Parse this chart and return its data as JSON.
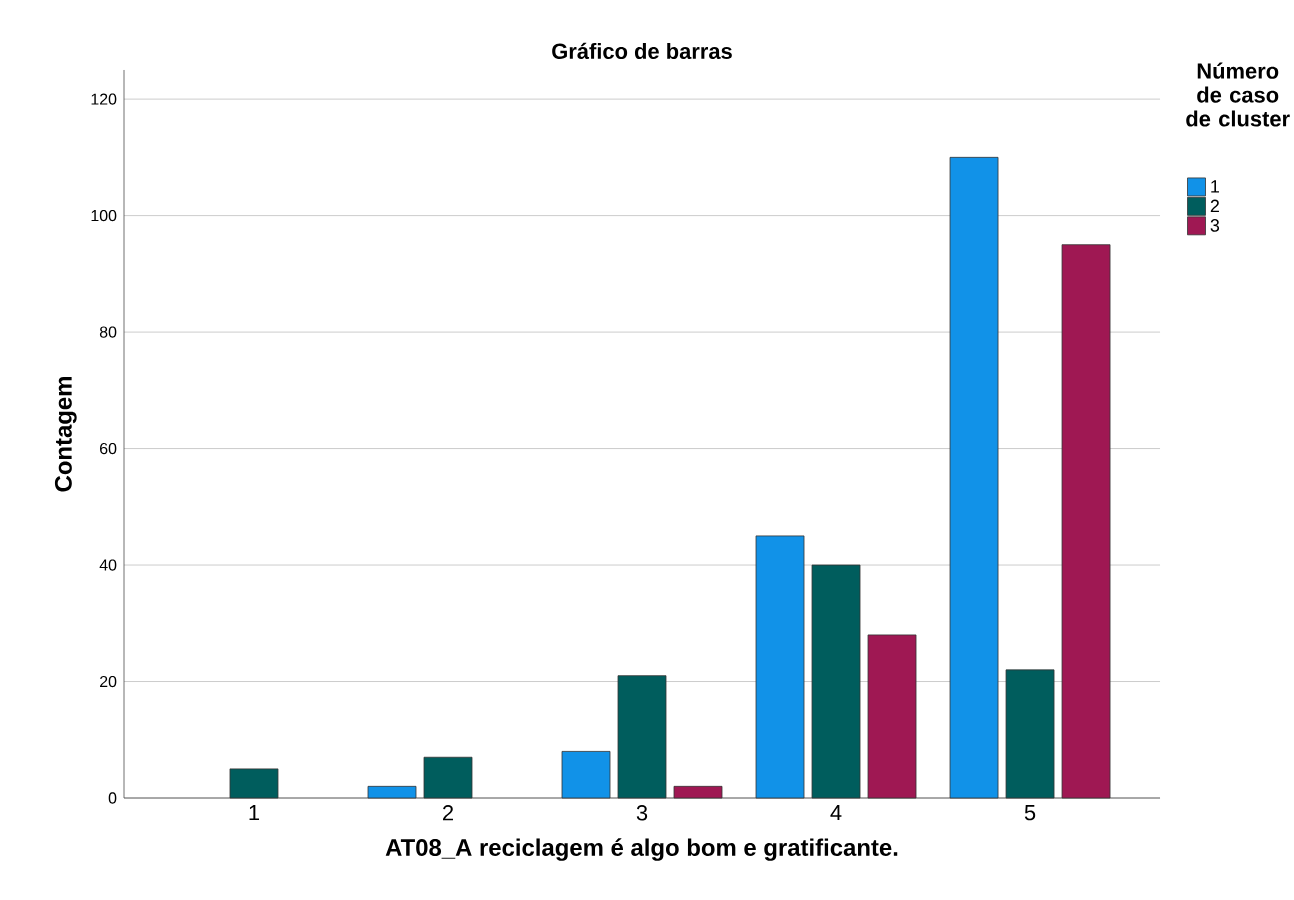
{
  "chart_data": {
    "type": "bar",
    "title": "Gráfico de barras",
    "xlabel": "AT08_A reciclagem é algo bom e gratificante.",
    "ylabel": "Contagem",
    "legend_title": "Número de caso de cluster",
    "categories": [
      "1",
      "2",
      "3",
      "4",
      "5"
    ],
    "series": [
      {
        "name": "1",
        "color": "#1192e8",
        "values": [
          null,
          2,
          8,
          45,
          110
        ]
      },
      {
        "name": "2",
        "color": "#005d5d",
        "values": [
          5,
          7,
          21,
          40,
          22
        ]
      },
      {
        "name": "3",
        "color": "#9f1853",
        "values": [
          null,
          null,
          2,
          28,
          95
        ]
      }
    ],
    "ylim": [
      0,
      125
    ],
    "yticks": [
      0,
      20,
      40,
      60,
      80,
      100,
      120
    ],
    "grid": "y",
    "legend": "top right"
  }
}
